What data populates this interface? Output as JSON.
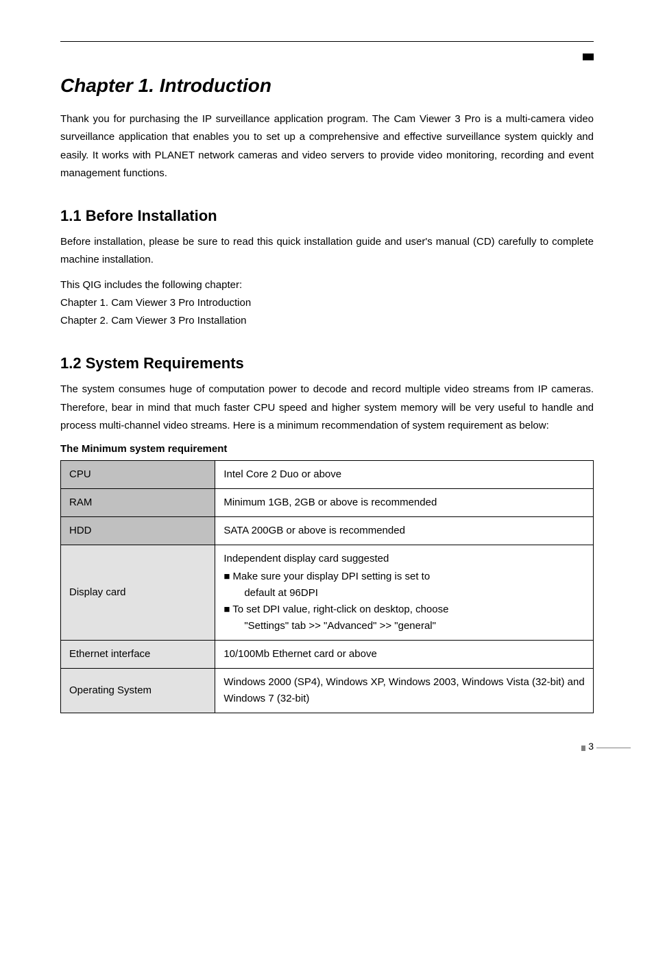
{
  "page": {
    "number": "3"
  },
  "chapter": {
    "title": "Chapter 1. Introduction",
    "intro": "Thank you for purchasing the IP surveillance application program. The Cam Viewer 3 Pro is a multi-camera video surveillance application that enables you to set up a comprehensive and effective surveillance system quickly and easily. It works with PLANET network cameras and video servers to provide video monitoring, recording and event management functions."
  },
  "section1": {
    "title": "1.1  Before Installation",
    "p1": "Before installation, please be sure to read this quick installation guide and user's manual (CD) carefully to complete machine installation.",
    "p2": "This QIG includes the following chapter:",
    "p3": "Chapter 1. Cam Viewer 3 Pro Introduction",
    "p4": "Chapter 2. Cam Viewer 3 Pro Installation"
  },
  "section2": {
    "title": "1.2  System Requirements",
    "p1": "The system consumes huge of computation power to decode and record multiple video streams from IP cameras. Therefore, bear in mind that much faster CPU speed and higher system memory will be very useful to handle and process multi-channel video streams. Here is a minimum recommendation of system requirement as below:",
    "tableTitle": "The Minimum system requirement"
  },
  "table": {
    "rows": [
      {
        "label": "CPU",
        "shade": "hdr",
        "value": "Intel Core 2 Duo or above"
      },
      {
        "label": "RAM",
        "shade": "hdr",
        "value": "Minimum 1GB, 2GB or above is recommended"
      },
      {
        "label": "HDD",
        "shade": "hdr",
        "value": "SATA 200GB or above is recommended"
      }
    ],
    "display": {
      "label": "Display card",
      "line1": "Independent display card suggested",
      "b1a": "■ Make sure your display DPI setting is set to",
      "b1b": "default at 96DPI",
      "b2a": "■ To set DPI value, right-click on desktop, choose",
      "b2b": "\"Settings\" tab >> \"Advanced\" >> \"general\""
    },
    "ethernet": {
      "label": "Ethernet interface",
      "value": "10/100Mb Ethernet card or above"
    },
    "os": {
      "label": "Operating System",
      "value": "Windows 2000 (SP4), Windows XP, Windows 2003, Windows Vista (32-bit) and Windows 7 (32-bit)"
    }
  }
}
